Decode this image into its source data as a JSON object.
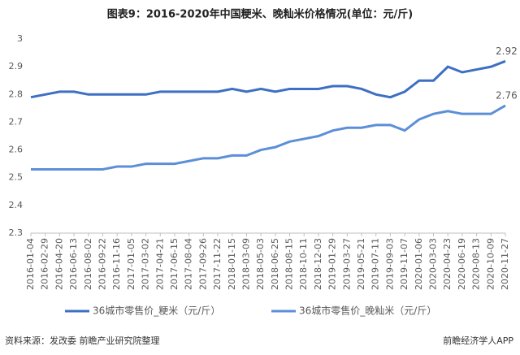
{
  "chart_data": {
    "type": "line",
    "title": "图表9：2016-2020年中国粳米、晚籼米价格情况(单位：元/斤)",
    "categories": [
      "2016-01-04",
      "2016-02-29",
      "2016-04-20",
      "2016-06-13",
      "2016-08-02",
      "2016-09-22",
      "2016-11-16",
      "2017-01-05",
      "2017-03-02",
      "2017-04-21",
      "2017-06-15",
      "2017-08-04",
      "2017-09-26",
      "2017-11-22",
      "2018-01-15",
      "2018-03-09",
      "2018-05-03",
      "2018-06-25",
      "2018-08-15",
      "2018-10-11",
      "2018-12-03",
      "2019-01-29",
      "2019-03-27",
      "2019-05-21",
      "2019-07-11",
      "2019-09-03",
      "2019-11-07",
      "2020-01-06",
      "2020-03-03",
      "2020-04-23",
      "2020-06-19",
      "2020-08-13",
      "2020-10-09",
      "2020-11-27"
    ],
    "series": [
      {
        "name": "36城市零售价_粳米（元/斤）",
        "color": "#3d6fc2",
        "values": [
          2.79,
          2.8,
          2.81,
          2.81,
          2.8,
          2.8,
          2.8,
          2.8,
          2.8,
          2.81,
          2.81,
          2.81,
          2.81,
          2.81,
          2.82,
          2.81,
          2.82,
          2.81,
          2.82,
          2.82,
          2.82,
          2.83,
          2.83,
          2.82,
          2.8,
          2.79,
          2.81,
          2.85,
          2.85,
          2.9,
          2.88,
          2.89,
          2.9,
          2.92
        ]
      },
      {
        "name": "36城市零售价_晚籼米（元/斤）",
        "color": "#5b8fd8",
        "values": [
          2.53,
          2.53,
          2.53,
          2.53,
          2.53,
          2.53,
          2.54,
          2.54,
          2.55,
          2.55,
          2.55,
          2.56,
          2.57,
          2.57,
          2.58,
          2.58,
          2.6,
          2.61,
          2.63,
          2.64,
          2.65,
          2.67,
          2.68,
          2.68,
          2.69,
          2.69,
          2.67,
          2.71,
          2.73,
          2.74,
          2.73,
          2.73,
          2.73,
          2.76
        ]
      }
    ],
    "ylim": [
      2.3,
      3
    ],
    "yticks": [
      2.3,
      2.4,
      2.5,
      2.6,
      2.7,
      2.8,
      2.9,
      3
    ],
    "grid": false,
    "source": "资料来源：发改委 前瞻产业研究院整理",
    "brand": "前瞻经济学人APP"
  }
}
